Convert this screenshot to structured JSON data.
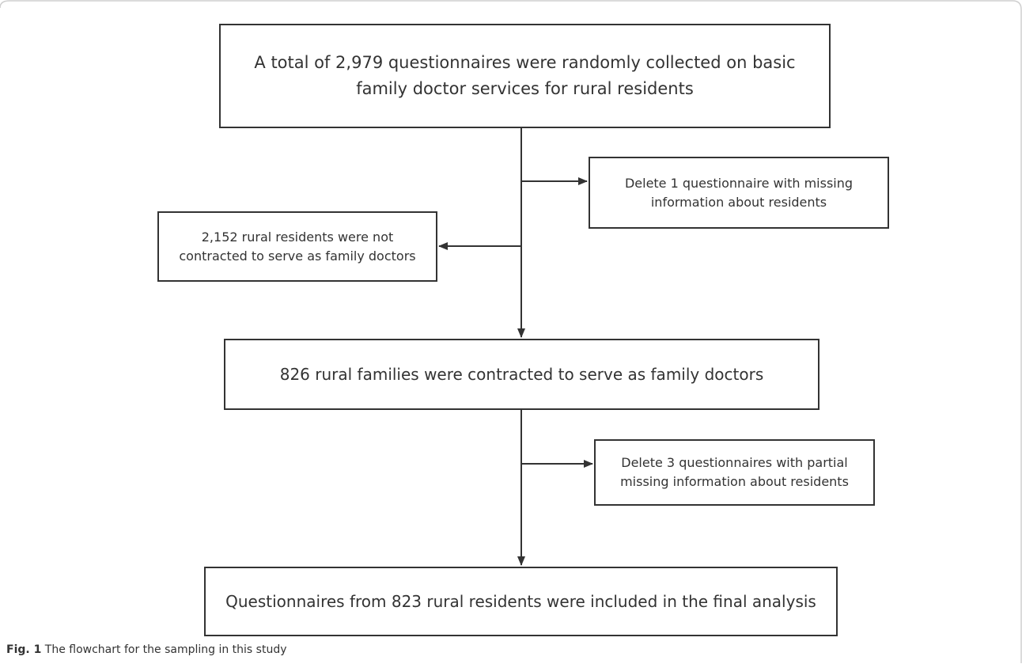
{
  "diagram": {
    "box_top": "A total of 2,979 questionnaires were randomly collected on basic family doctor services for rural residents",
    "box_right_1": "Delete 1 questionnaire with missing information about residents",
    "box_left": "2,152 rural residents were not contracted to serve as family doctors",
    "box_middle": "826 rural families were contracted to serve as family doctors",
    "box_right_2": "Delete 3 questionnaires with partial missing information about residents",
    "box_bottom": "Questionnaires from 823 rural residents were included in the final analysis"
  },
  "caption": {
    "label": "Fig. 1",
    "text": "The flowchart for the sampling in this study"
  },
  "colors": {
    "line": "#333333",
    "frame": "#cfcfcf"
  }
}
